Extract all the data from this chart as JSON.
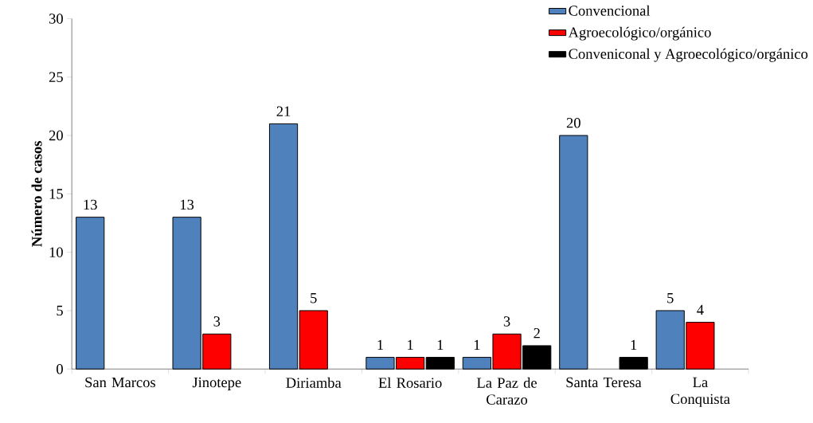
{
  "chart_data": {
    "type": "bar",
    "ylabel": "Número de casos",
    "categories": [
      "San Marcos",
      "Jinotepe",
      "Diriamba",
      "El Rosario",
      "La Paz de Carazo",
      "Santa Teresa",
      "La Conquista"
    ],
    "series": [
      {
        "name": "Convencional",
        "color": "#4f81bd",
        "values": [
          13,
          13,
          21,
          1,
          1,
          20,
          5
        ]
      },
      {
        "name": "Agroecológico/orgánico",
        "color": "#ff0000",
        "values": [
          null,
          3,
          5,
          1,
          3,
          null,
          4
        ]
      },
      {
        "name": "Conveniconal y Agroecológico/orgánico",
        "color": "#000000",
        "values": [
          null,
          null,
          null,
          1,
          2,
          1,
          null
        ]
      }
    ],
    "ylim": [
      0,
      30
    ],
    "yticks": [
      0,
      5,
      10,
      15,
      20,
      25,
      30
    ],
    "grid": false,
    "legend": "top right",
    "data_labels": true
  }
}
